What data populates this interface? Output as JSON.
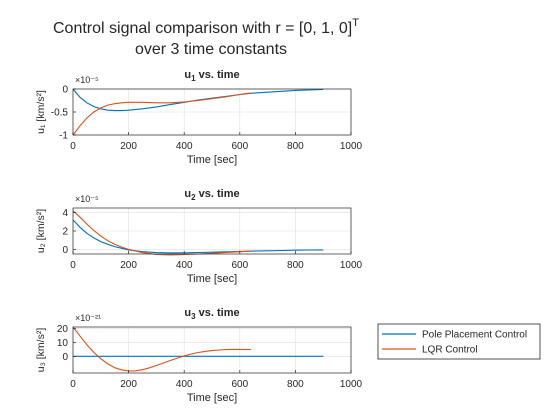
{
  "figure": {
    "title_line1": "Control signal comparison with r = [0, 1, 0]",
    "title_sup": "T",
    "title_line2": "over 3 time constants"
  },
  "legend": {
    "placement": "right-of-bottom-plot",
    "entries": [
      {
        "label": "Pole Placement Control",
        "color": "#0072BD"
      },
      {
        "label": "LQR Control",
        "color": "#D95319"
      }
    ]
  },
  "chart_data": [
    {
      "type": "line",
      "title": "u₁ vs. time",
      "title_base": "u",
      "title_sub": "1",
      "title_rest": " vs. time",
      "ylabel": "u₁ [km/s²]",
      "xlabel": "Time [sec]",
      "exponent_label": "×10⁻⁵",
      "xlim": [
        0,
        1000
      ],
      "ylim": [
        -1,
        0
      ],
      "xticks": [
        0,
        200,
        400,
        600,
        800,
        1000
      ],
      "yticks": [
        -1,
        -0.5,
        0
      ],
      "ytick_labels": [
        "-1",
        "-0.5",
        "0"
      ],
      "grid": true,
      "series": [
        {
          "name": "Pole Placement Control",
          "color": "#0072BD",
          "x": [
            0,
            25,
            50,
            75,
            100,
            125,
            150,
            175,
            200,
            250,
            300,
            350,
            400,
            450,
            500,
            550,
            600,
            650,
            700,
            750,
            800,
            850,
            900
          ],
          "y": [
            0,
            -0.18,
            -0.3,
            -0.38,
            -0.43,
            -0.46,
            -0.47,
            -0.47,
            -0.46,
            -0.43,
            -0.39,
            -0.34,
            -0.29,
            -0.24,
            -0.2,
            -0.16,
            -0.12,
            -0.09,
            -0.07,
            -0.05,
            -0.03,
            -0.02,
            -0.01
          ]
        },
        {
          "name": "LQR Control",
          "color": "#D95319",
          "x": [
            0,
            25,
            50,
            75,
            100,
            125,
            150,
            175,
            200,
            250,
            300,
            350,
            400,
            450,
            500,
            550,
            600,
            620,
            640
          ],
          "y": [
            -1,
            -0.8,
            -0.63,
            -0.5,
            -0.41,
            -0.35,
            -0.32,
            -0.3,
            -0.29,
            -0.29,
            -0.3,
            -0.3,
            -0.28,
            -0.25,
            -0.21,
            -0.17,
            -0.12,
            -0.1,
            -0.09
          ]
        }
      ]
    },
    {
      "type": "line",
      "title": "u₂ vs. time",
      "title_base": "u",
      "title_sub": "2",
      "title_rest": " vs. time",
      "ylabel": "u₂ [km/s²]",
      "xlabel": "Time [sec]",
      "exponent_label": "×10⁻⁵",
      "xlim": [
        0,
        1000
      ],
      "ylim": [
        -0.5,
        4.5
      ],
      "xticks": [
        0,
        200,
        400,
        600,
        800,
        1000
      ],
      "yticks": [
        0,
        2,
        4
      ],
      "ytick_labels": [
        "0",
        "2",
        "4"
      ],
      "grid": true,
      "series": [
        {
          "name": "Pole Placement Control",
          "color": "#0072BD",
          "x": [
            0,
            25,
            50,
            75,
            100,
            125,
            150,
            175,
            200,
            250,
            300,
            350,
            400,
            450,
            500,
            550,
            600,
            650,
            700,
            750,
            800,
            850,
            900
          ],
          "y": [
            3.2,
            2.4,
            1.75,
            1.25,
            0.85,
            0.55,
            0.3,
            0.12,
            -0.05,
            -0.25,
            -0.35,
            -0.38,
            -0.37,
            -0.34,
            -0.3,
            -0.26,
            -0.22,
            -0.18,
            -0.15,
            -0.12,
            -0.09,
            -0.07,
            -0.05
          ]
        },
        {
          "name": "LQR Control",
          "color": "#D95319",
          "x": [
            0,
            25,
            50,
            75,
            100,
            125,
            150,
            175,
            200,
            250,
            300,
            350,
            400,
            450,
            500,
            550,
            600,
            620,
            640
          ],
          "y": [
            4.2,
            3.5,
            2.75,
            2.05,
            1.45,
            0.95,
            0.55,
            0.25,
            0.0,
            -0.35,
            -0.55,
            -0.6,
            -0.57,
            -0.5,
            -0.42,
            -0.33,
            -0.25,
            -0.22,
            -0.2
          ]
        }
      ]
    },
    {
      "type": "line",
      "title": "u₃ vs. time",
      "title_base": "u",
      "title_sub": "3",
      "title_rest": " vs. time",
      "ylabel": "u₃ [km/s²]",
      "xlabel": "Time [sec]",
      "exponent_label": "×10⁻²¹",
      "xlim": [
        0,
        1000
      ],
      "ylim": [
        -12,
        21
      ],
      "xticks": [
        0,
        200,
        400,
        600,
        800,
        1000
      ],
      "yticks": [
        0,
        10,
        20
      ],
      "ytick_labels": [
        "0",
        "10",
        "20"
      ],
      "grid": true,
      "series": [
        {
          "name": "Pole Placement Control",
          "color": "#0072BD",
          "x": [
            0,
            900
          ],
          "y": [
            0,
            0
          ]
        },
        {
          "name": "LQR Control",
          "color": "#D95319",
          "x": [
            0,
            25,
            50,
            75,
            100,
            125,
            150,
            175,
            200,
            225,
            250,
            275,
            300,
            325,
            350,
            375,
            400,
            425,
            450,
            475,
            500,
            525,
            550,
            575,
            600,
            620,
            640
          ],
          "y": [
            21,
            14.5,
            8.2,
            2.8,
            -1.8,
            -5.5,
            -8.2,
            -9.8,
            -10.5,
            -10.4,
            -9.6,
            -8.3,
            -6.6,
            -4.8,
            -3.0,
            -1.3,
            0.3,
            1.6,
            2.7,
            3.5,
            4.1,
            4.5,
            4.8,
            4.9,
            4.9,
            4.9,
            4.8
          ]
        }
      ]
    }
  ]
}
